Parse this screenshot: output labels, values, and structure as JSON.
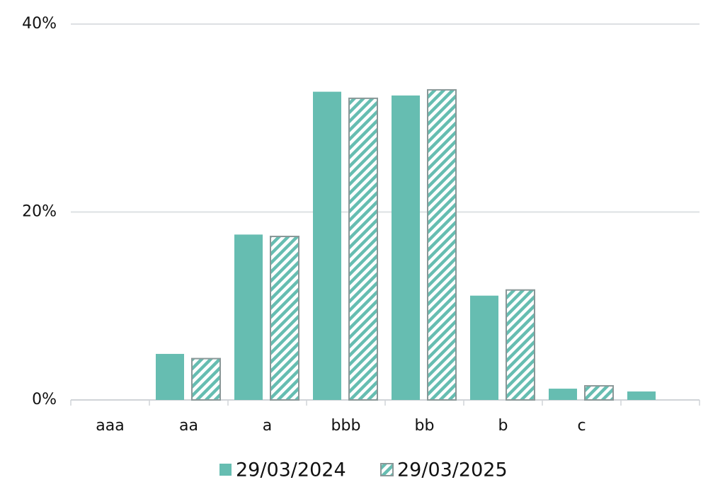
{
  "chart_data": {
    "type": "bar",
    "categories": [
      "aaa",
      "aa",
      "a",
      "bbb",
      "bb",
      "b",
      "c",
      null
    ],
    "series": [
      {
        "name": "29/03/2024",
        "color": "#66bdb1",
        "values": [
          0,
          4.9,
          17.6,
          32.8,
          32.4,
          11.1,
          1.2,
          0.9
        ]
      },
      {
        "name": "29/03/2025",
        "color": "#66bdb1",
        "hatched": true,
        "values": [
          0,
          4.4,
          17.4,
          32.1,
          33.0,
          11.7,
          1.5,
          null
        ]
      }
    ],
    "ylim": [
      0,
      40
    ],
    "yticks": [
      {
        "value": 0,
        "label": "0%"
      },
      {
        "value": 20,
        "label": "20%"
      },
      {
        "value": 40,
        "label": "40%"
      }
    ],
    "grid": true,
    "legend": "bottom"
  }
}
